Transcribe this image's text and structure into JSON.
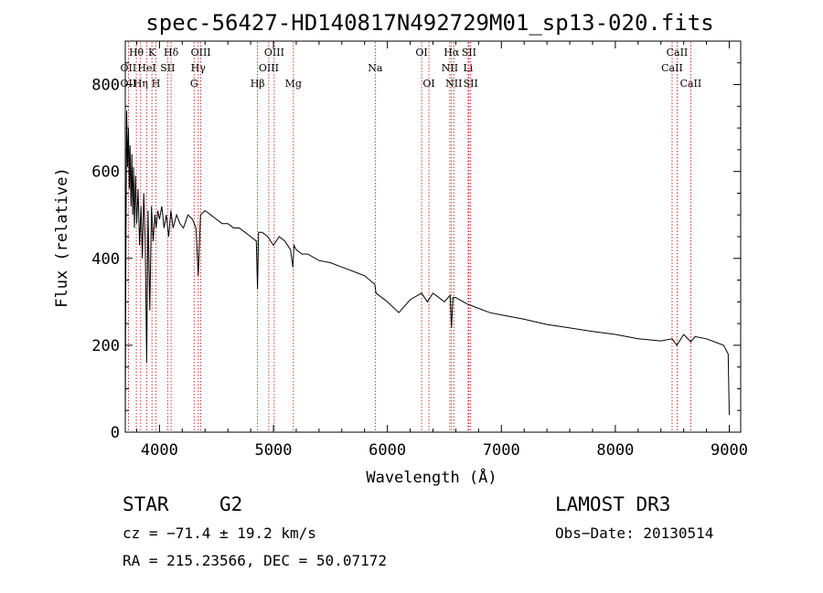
{
  "chart_data": {
    "type": "line",
    "title": "spec-56427-HD140817N492729M01_sp13-020.fits",
    "xlabel": "Wavelength (Å)",
    "ylabel": "Flux (relative)",
    "xlim": [
      3700,
      9100
    ],
    "ylim": [
      0,
      900
    ],
    "xticks": [
      4000,
      5000,
      6000,
      7000,
      8000,
      9000
    ],
    "yticks": [
      0,
      200,
      400,
      600,
      800
    ],
    "series": [
      {
        "name": "flux",
        "x": [
          3700,
          3705,
          3712,
          3720,
          3728,
          3735,
          3742,
          3750,
          3758,
          3765,
          3772,
          3780,
          3790,
          3800,
          3812,
          3825,
          3838,
          3850,
          3862,
          3875,
          3888,
          3900,
          3915,
          3930,
          3945,
          3960,
          3970,
          3985,
          4000,
          4020,
          4040,
          4060,
          4080,
          4100,
          4120,
          4150,
          4180,
          4210,
          4250,
          4290,
          4320,
          4340,
          4360,
          4400,
          4450,
          4500,
          4550,
          4600,
          4650,
          4700,
          4750,
          4800,
          4850,
          4860,
          4870,
          4900,
          4950,
          5000,
          5050,
          5100,
          5150,
          5170,
          5180,
          5200,
          5250,
          5300,
          5400,
          5500,
          5600,
          5700,
          5800,
          5890,
          5900,
          6000,
          6100,
          6200,
          6300,
          6350,
          6400,
          6500,
          6550,
          6563,
          6575,
          6600,
          6700,
          6800,
          6900,
          7000,
          7200,
          7400,
          7600,
          7800,
          8000,
          8200,
          8400,
          8498,
          8540,
          8600,
          8662,
          8700,
          8800,
          8900,
          8950,
          8990,
          9000
        ],
        "values": [
          20,
          380,
          740,
          610,
          700,
          560,
          660,
          520,
          640,
          500,
          610,
          470,
          590,
          480,
          560,
          430,
          520,
          400,
          550,
          440,
          160,
          510,
          280,
          520,
          440,
          500,
          470,
          510,
          490,
          520,
          470,
          500,
          450,
          510,
          470,
          500,
          480,
          470,
          500,
          490,
          470,
          360,
          500,
          510,
          500,
          490,
          480,
          480,
          470,
          470,
          460,
          450,
          440,
          330,
          460,
          460,
          450,
          430,
          450,
          440,
          420,
          380,
          430,
          420,
          410,
          410,
          395,
          390,
          380,
          370,
          360,
          340,
          320,
          300,
          275,
          305,
          320,
          300,
          320,
          300,
          315,
          240,
          310,
          310,
          295,
          285,
          275,
          270,
          260,
          248,
          240,
          232,
          225,
          215,
          210,
          215,
          200,
          225,
          208,
          220,
          215,
          205,
          200,
          180,
          40
        ]
      }
    ],
    "lines": [
      {
        "label": "Hθ",
        "wl": 3797,
        "row": 1
      },
      {
        "label": "OII",
        "wl": 3727,
        "row": 2
      },
      {
        "label": "OII",
        "wl": 3727,
        "row": 3
      },
      {
        "label": "Hη",
        "wl": 3835,
        "row": 3
      },
      {
        "label": "HeI",
        "wl": 3889,
        "row": 2
      },
      {
        "label": "K",
        "wl": 3934,
        "row": 1
      },
      {
        "label": "H",
        "wl": 3969,
        "row": 3
      },
      {
        "label": "SII",
        "wl": 4072,
        "row": 2
      },
      {
        "label": "Hδ",
        "wl": 4102,
        "row": 1
      },
      {
        "label": "OIII",
        "wl": 4363,
        "row": 1
      },
      {
        "label": "Hγ",
        "wl": 4340,
        "row": 2
      },
      {
        "label": "G",
        "wl": 4304,
        "row": 3
      },
      {
        "label": "Hβ",
        "wl": 4861,
        "row": 3
      },
      {
        "label": "OIII",
        "wl": 4959,
        "row": 2
      },
      {
        "label": "OIII",
        "wl": 5007,
        "row": 1
      },
      {
        "label": "Mg",
        "wl": 5175,
        "row": 3
      },
      {
        "label": "Na",
        "wl": 5893,
        "row": 2
      },
      {
        "label": "OI",
        "wl": 6300,
        "row": 1
      },
      {
        "label": "OI",
        "wl": 6364,
        "row": 3
      },
      {
        "label": "Hα",
        "wl": 6563,
        "row": 1
      },
      {
        "label": "NII",
        "wl": 6548,
        "row": 2
      },
      {
        "label": "NII",
        "wl": 6583,
        "row": 3
      },
      {
        "label": "SII",
        "wl": 6716,
        "row": 1
      },
      {
        "label": "Li",
        "wl": 6708,
        "row": 2
      },
      {
        "label": "SII",
        "wl": 6731,
        "row": 3
      },
      {
        "label": "CaII",
        "wl": 8542,
        "row": 1
      },
      {
        "label": "CaII",
        "wl": 8498,
        "row": 2
      },
      {
        "label": "CaII",
        "wl": 8662,
        "row": 3
      }
    ],
    "line_color": "#cc0000",
    "grid": false
  },
  "info": {
    "object_class": "STAR",
    "subclass": "G2",
    "survey": "LAMOST DR3",
    "cz": "cz = −71.4 ± 19.2 km/s",
    "obs_date": "Obs−Date: 20130514",
    "coords": "RA = 215.23566, DEC =  50.07172"
  }
}
